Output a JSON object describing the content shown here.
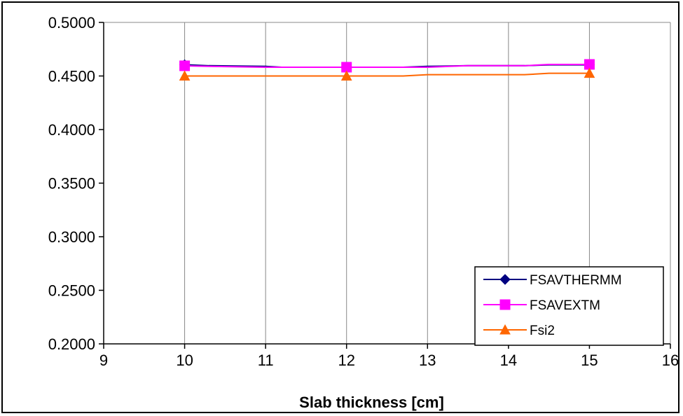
{
  "chart_data": {
    "type": "line",
    "xlabel": "Slab thickness [cm]",
    "ylabel": "",
    "xlim": [
      9,
      16
    ],
    "ylim": [
      0.2,
      0.5
    ],
    "x_ticks": [
      "9",
      "10",
      "11",
      "12",
      "13",
      "14",
      "15",
      "16"
    ],
    "y_ticks": [
      "0.2000",
      "0.2500",
      "0.3000",
      "0.3500",
      "0.4000",
      "0.4500",
      "0.5000"
    ],
    "grid": "vertical",
    "legend_position": "bottom-right",
    "series": [
      {
        "name": "FSAVTHERMM",
        "color": "#000080",
        "marker": "diamond",
        "x": [
          10,
          12,
          15
        ],
        "y": [
          0.4605,
          0.4582,
          0.4604
        ],
        "x_line": [
          10,
          10.3,
          11,
          11.2,
          12,
          12.7,
          13,
          13.5,
          14.2,
          14.5,
          15
        ],
        "y_line": [
          0.4605,
          0.4596,
          0.459,
          0.4582,
          0.4582,
          0.4582,
          0.459,
          0.4596,
          0.4596,
          0.4604,
          0.4604
        ]
      },
      {
        "name": "FSAVEXTM",
        "color": "#FF00FF",
        "marker": "square",
        "x": [
          10,
          12,
          15
        ],
        "y": [
          0.4595,
          0.4582,
          0.4608
        ],
        "x_line": [
          10,
          10.3,
          11,
          11.2,
          12,
          12.7,
          13,
          13.5,
          14.2,
          14.5,
          15
        ],
        "y_line": [
          0.4595,
          0.459,
          0.4582,
          0.4582,
          0.4582,
          0.4582,
          0.4582,
          0.4596,
          0.4596,
          0.4608,
          0.4608
        ]
      },
      {
        "name": "Fsi2",
        "color": "#FF6600",
        "marker": "triangle",
        "x": [
          10,
          12,
          15
        ],
        "y": [
          0.45,
          0.45,
          0.4525
        ],
        "x_line": [
          10,
          10.3,
          11,
          11.2,
          12,
          12.7,
          13,
          13.5,
          14.2,
          14.5,
          15
        ],
        "y_line": [
          0.45,
          0.45,
          0.45,
          0.45,
          0.45,
          0.45,
          0.4512,
          0.4512,
          0.4512,
          0.4525,
          0.4525
        ]
      }
    ]
  }
}
